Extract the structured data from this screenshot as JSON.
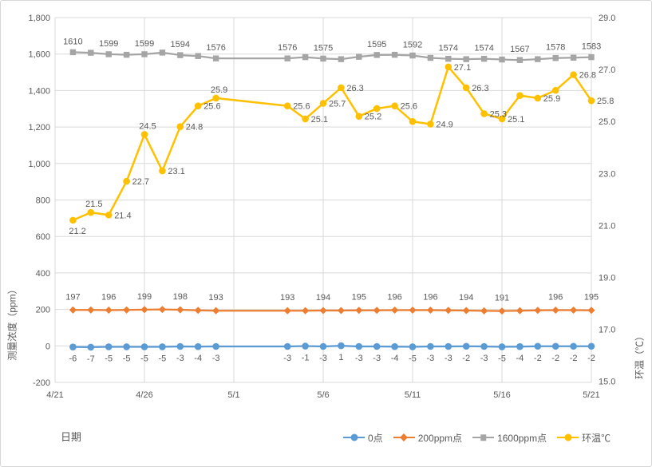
{
  "chart_data": {
    "type": "line",
    "title": "",
    "grid": true,
    "legend_position": "bottom",
    "x_axis": {
      "title": "日期",
      "range_days": [
        0,
        30
      ],
      "ticks": [
        {
          "day": 0,
          "label": "4/21"
        },
        {
          "day": 5,
          "label": "4/26"
        },
        {
          "day": 10,
          "label": "5/1"
        },
        {
          "day": 15,
          "label": "5/6"
        },
        {
          "day": 20,
          "label": "5/11"
        },
        {
          "day": 25,
          "label": "5/16"
        },
        {
          "day": 30,
          "label": "5/21"
        }
      ]
    },
    "y_left": {
      "title": "测量浓度（ppm）",
      "min": -200,
      "max": 1800,
      "step": 200,
      "ticks": [
        {
          "value": 1800,
          "label": "1,800"
        },
        {
          "value": 1600,
          "label": "1,600"
        },
        {
          "value": 1400,
          "label": "1,400"
        },
        {
          "value": 1200,
          "label": "1,200"
        },
        {
          "value": 1000,
          "label": "1,000"
        },
        {
          "value": 800,
          "label": "800"
        },
        {
          "value": 600,
          "label": "600"
        },
        {
          "value": 400,
          "label": "400"
        },
        {
          "value": 200,
          "label": "200"
        },
        {
          "value": 0,
          "label": "0"
        },
        {
          "value": -200,
          "label": "-200"
        }
      ]
    },
    "y_right": {
      "title": "环温（℃）",
      "min": 15,
      "max": 29,
      "step": 2,
      "ticks": [
        {
          "value": 29,
          "label": "29.0"
        },
        {
          "value": 27,
          "label": "27.0"
        },
        {
          "value": 25,
          "label": "25.0"
        },
        {
          "value": 23,
          "label": "23.0"
        },
        {
          "value": 21,
          "label": "21.0"
        },
        {
          "value": 19,
          "label": "19.0"
        },
        {
          "value": 17,
          "label": "17.0"
        },
        {
          "value": 15,
          "label": "15.0"
        }
      ]
    },
    "series": [
      {
        "name": "0点",
        "color": "#5B9BD5",
        "marker": "circle",
        "axis": "left",
        "label_position": "below",
        "labels": "all",
        "points": [
          {
            "date": "4/22",
            "day": 1,
            "value": -6
          },
          {
            "date": "4/23",
            "day": 2,
            "value": -7
          },
          {
            "date": "4/24",
            "day": 3,
            "value": -5
          },
          {
            "date": "4/25",
            "day": 4,
            "value": -5
          },
          {
            "date": "4/26",
            "day": 5,
            "value": -5
          },
          {
            "date": "4/27",
            "day": 6,
            "value": -5
          },
          {
            "date": "4/28",
            "day": 7,
            "value": -3
          },
          {
            "date": "4/29",
            "day": 8,
            "value": -4
          },
          {
            "date": "4/30",
            "day": 9,
            "value": -3
          },
          {
            "date": "5/4",
            "day": 13,
            "value": -3
          },
          {
            "date": "5/5",
            "day": 14,
            "value": -1
          },
          {
            "date": "5/6",
            "day": 15,
            "value": -3
          },
          {
            "date": "5/7",
            "day": 16,
            "value": 1
          },
          {
            "date": "5/8",
            "day": 17,
            "value": -3
          },
          {
            "date": "5/9",
            "day": 18,
            "value": -3
          },
          {
            "date": "5/10",
            "day": 19,
            "value": -4
          },
          {
            "date": "5/11",
            "day": 20,
            "value": -5
          },
          {
            "date": "5/12",
            "day": 21,
            "value": -3
          },
          {
            "date": "5/13",
            "day": 22,
            "value": -3
          },
          {
            "date": "5/14",
            "day": 23,
            "value": -2
          },
          {
            "date": "5/15",
            "day": 24,
            "value": -3
          },
          {
            "date": "5/16",
            "day": 25,
            "value": -5
          },
          {
            "date": "5/17",
            "day": 26,
            "value": -4
          },
          {
            "date": "5/18",
            "day": 27,
            "value": -2
          },
          {
            "date": "5/19",
            "day": 28,
            "value": -2
          },
          {
            "date": "5/20",
            "day": 29,
            "value": -2
          },
          {
            "date": "5/21",
            "day": 30,
            "value": -2
          }
        ]
      },
      {
        "name": "200ppm点",
        "color": "#ED7D31",
        "marker": "diamond",
        "axis": "left",
        "label_position": "above",
        "label_offset": -13,
        "points": [
          {
            "date": "4/22",
            "day": 1,
            "value": 197,
            "label": "197"
          },
          {
            "date": "4/23",
            "day": 2,
            "value": 197
          },
          {
            "date": "4/24",
            "day": 3,
            "value": 196,
            "label": "196"
          },
          {
            "date": "4/25",
            "day": 4,
            "value": 197
          },
          {
            "date": "4/26",
            "day": 5,
            "value": 199,
            "label": "199"
          },
          {
            "date": "4/27",
            "day": 6,
            "value": 200
          },
          {
            "date": "4/28",
            "day": 7,
            "value": 198,
            "label": "198"
          },
          {
            "date": "4/29",
            "day": 8,
            "value": 195
          },
          {
            "date": "4/30",
            "day": 9,
            "value": 193,
            "label": "193"
          },
          {
            "date": "5/4",
            "day": 13,
            "value": 193,
            "label": "193"
          },
          {
            "date": "5/5",
            "day": 14,
            "value": 193
          },
          {
            "date": "5/6",
            "day": 15,
            "value": 194,
            "label": "194"
          },
          {
            "date": "5/7",
            "day": 16,
            "value": 194
          },
          {
            "date": "5/8",
            "day": 17,
            "value": 195,
            "label": "195"
          },
          {
            "date": "5/9",
            "day": 18,
            "value": 195
          },
          {
            "date": "5/10",
            "day": 19,
            "value": 196,
            "label": "196"
          },
          {
            "date": "5/11",
            "day": 20,
            "value": 196
          },
          {
            "date": "5/12",
            "day": 21,
            "value": 196,
            "label": "196"
          },
          {
            "date": "5/13",
            "day": 22,
            "value": 195
          },
          {
            "date": "5/14",
            "day": 23,
            "value": 194,
            "label": "194"
          },
          {
            "date": "5/15",
            "day": 24,
            "value": 192
          },
          {
            "date": "5/16",
            "day": 25,
            "value": 191,
            "label": "191"
          },
          {
            "date": "5/17",
            "day": 26,
            "value": 193
          },
          {
            "date": "5/18",
            "day": 27,
            "value": 195
          },
          {
            "date": "5/19",
            "day": 28,
            "value": 196,
            "label": "196"
          },
          {
            "date": "5/20",
            "day": 29,
            "value": 196
          },
          {
            "date": "5/21",
            "day": 30,
            "value": 195,
            "label": "195"
          }
        ]
      },
      {
        "name": "1600ppm点",
        "color": "#A5A5A5",
        "marker": "square",
        "axis": "left",
        "label_position": "above",
        "label_offset": -10,
        "points": [
          {
            "date": "4/22",
            "day": 1,
            "value": 1610,
            "label": "1610"
          },
          {
            "date": "4/23",
            "day": 2,
            "value": 1607
          },
          {
            "date": "4/24",
            "day": 3,
            "value": 1599,
            "label": "1599"
          },
          {
            "date": "4/25",
            "day": 4,
            "value": 1596
          },
          {
            "date": "4/26",
            "day": 5,
            "value": 1599,
            "label": "1599"
          },
          {
            "date": "4/27",
            "day": 6,
            "value": 1608
          },
          {
            "date": "4/28",
            "day": 7,
            "value": 1594,
            "label": "1594"
          },
          {
            "date": "4/29",
            "day": 8,
            "value": 1589
          },
          {
            "date": "4/30",
            "day": 9,
            "value": 1576,
            "label": "1576"
          },
          {
            "date": "5/4",
            "day": 13,
            "value": 1576,
            "label": "1576"
          },
          {
            "date": "5/5",
            "day": 14,
            "value": 1583
          },
          {
            "date": "5/6",
            "day": 15,
            "value": 1575,
            "label": "1575"
          },
          {
            "date": "5/7",
            "day": 16,
            "value": 1572
          },
          {
            "date": "5/8",
            "day": 17,
            "value": 1585
          },
          {
            "date": "5/9",
            "day": 18,
            "value": 1595,
            "label": "1595"
          },
          {
            "date": "5/10",
            "day": 19,
            "value": 1596
          },
          {
            "date": "5/11",
            "day": 20,
            "value": 1592,
            "label": "1592"
          },
          {
            "date": "5/12",
            "day": 21,
            "value": 1579
          },
          {
            "date": "5/13",
            "day": 22,
            "value": 1574,
            "label": "1574"
          },
          {
            "date": "5/14",
            "day": 23,
            "value": 1572
          },
          {
            "date": "5/15",
            "day": 24,
            "value": 1574,
            "label": "1574"
          },
          {
            "date": "5/16",
            "day": 25,
            "value": 1570
          },
          {
            "date": "5/17",
            "day": 26,
            "value": 1567,
            "label": "1567"
          },
          {
            "date": "5/18",
            "day": 27,
            "value": 1572
          },
          {
            "date": "5/19",
            "day": 28,
            "value": 1578,
            "label": "1578"
          },
          {
            "date": "5/20",
            "day": 29,
            "value": 1580
          },
          {
            "date": "5/21",
            "day": 30,
            "value": 1583,
            "label": "1583"
          }
        ]
      },
      {
        "name": "环温℃",
        "color": "#FFC000",
        "marker": "circle",
        "axis": "right",
        "label_position": "mixed",
        "points": [
          {
            "date": "4/22",
            "day": 1,
            "value": 21.2,
            "label": "21.2",
            "label_pos": "b"
          },
          {
            "date": "4/23",
            "day": 2,
            "value": 21.5,
            "label": "21.5",
            "label_pos": "a"
          },
          {
            "date": "4/24",
            "day": 3,
            "value": 21.4,
            "label": "21.4",
            "label_pos": "r"
          },
          {
            "date": "4/25",
            "day": 4,
            "value": 22.7,
            "label": "22.7",
            "label_pos": "r"
          },
          {
            "date": "4/26",
            "day": 5,
            "value": 24.5,
            "label": "24.5",
            "label_pos": "a"
          },
          {
            "date": "4/27",
            "day": 6,
            "value": 23.1,
            "label": "23.1",
            "label_pos": "r"
          },
          {
            "date": "4/28",
            "day": 7,
            "value": 24.8,
            "label": "24.8",
            "label_pos": "r"
          },
          {
            "date": "4/29",
            "day": 8,
            "value": 25.6,
            "label": "25.6",
            "label_pos": "r"
          },
          {
            "date": "4/30",
            "day": 9,
            "value": 25.9,
            "label": "25.9",
            "label_pos": "a"
          },
          {
            "date": "5/4",
            "day": 13,
            "value": 25.6,
            "label": "25.6",
            "label_pos": "r"
          },
          {
            "date": "5/5",
            "day": 14,
            "value": 25.1,
            "label": "25.1",
            "label_pos": "r"
          },
          {
            "date": "5/6",
            "day": 15,
            "value": 25.7,
            "label": "25.7",
            "label_pos": "r"
          },
          {
            "date": "5/7",
            "day": 16,
            "value": 26.3,
            "label": "26.3",
            "label_pos": "r"
          },
          {
            "date": "5/8",
            "day": 17,
            "value": 25.2,
            "label": "25.2",
            "label_pos": "r"
          },
          {
            "date": "5/9",
            "day": 18,
            "value": 25.5
          },
          {
            "date": "5/10",
            "day": 19,
            "value": 25.6,
            "label": "25.6",
            "label_pos": "r"
          },
          {
            "date": "5/11",
            "day": 20,
            "value": 25.0
          },
          {
            "date": "5/12",
            "day": 21,
            "value": 24.9,
            "label": "24.9",
            "label_pos": "r"
          },
          {
            "date": "5/13",
            "day": 22,
            "value": 27.1,
            "label": "27.1",
            "label_pos": "r"
          },
          {
            "date": "5/14",
            "day": 23,
            "value": 26.3,
            "label": "26.3",
            "label_pos": "r"
          },
          {
            "date": "5/15",
            "day": 24,
            "value": 25.3,
            "label": "25.3",
            "label_pos": "r"
          },
          {
            "date": "5/16",
            "day": 25,
            "value": 25.1,
            "label": "25.1",
            "label_pos": "r"
          },
          {
            "date": "5/17",
            "day": 26,
            "value": 26.0
          },
          {
            "date": "5/18",
            "day": 27,
            "value": 25.9,
            "label": "25.9",
            "label_pos": "r"
          },
          {
            "date": "5/19",
            "day": 28,
            "value": 26.2
          },
          {
            "date": "5/20",
            "day": 29,
            "value": 26.8,
            "label": "26.8",
            "label_pos": "r"
          },
          {
            "date": "5/21",
            "day": 30,
            "value": 25.8,
            "label": "25.8",
            "label_pos": "r"
          }
        ]
      }
    ],
    "style": {
      "gridline_color": "#D9D9D9",
      "text_color": "#595959",
      "background": "#FFFFFF"
    }
  }
}
